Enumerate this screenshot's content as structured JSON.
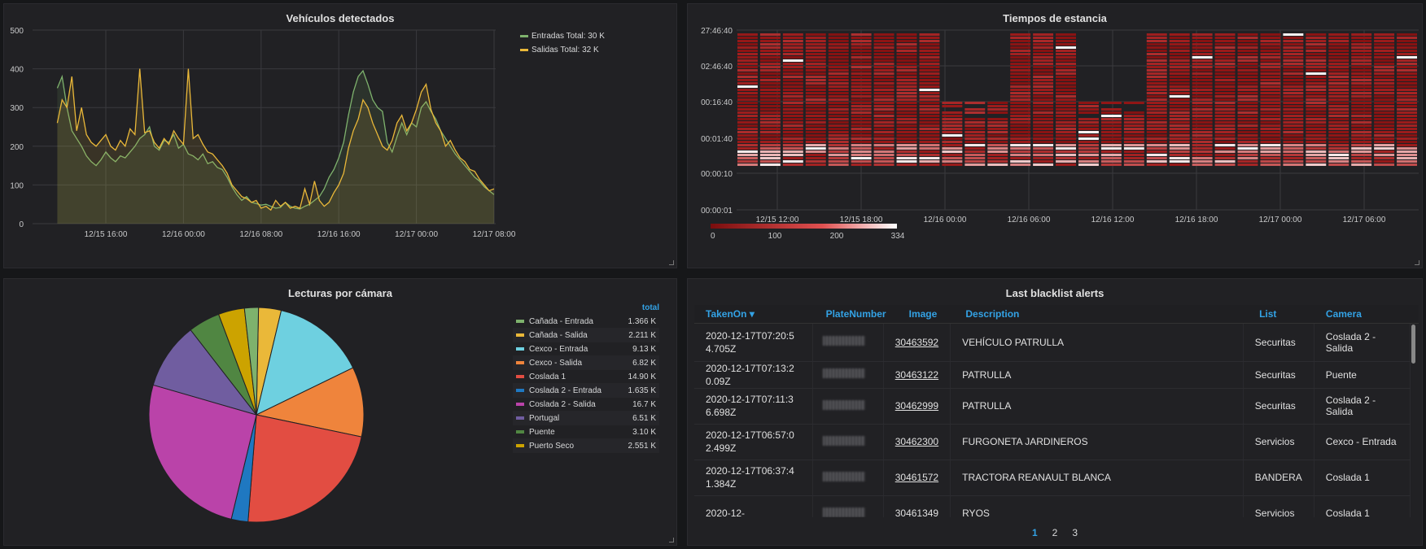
{
  "vehiculos": {
    "title": "Vehículos detectados",
    "legend": [
      {
        "name": "Entradas",
        "total": "Total: 30 K",
        "color": "#7eb26d"
      },
      {
        "name": "Salidas",
        "total": "Total: 32 K",
        "color": "#eab839"
      }
    ],
    "chart_data": {
      "type": "line",
      "title": "Vehículos detectados",
      "ylim": [
        0,
        500
      ],
      "yticks": [
        "0",
        "100",
        "200",
        "300",
        "400",
        "500"
      ],
      "xticks": [
        "12/15 16:00",
        "12/16 00:00",
        "12/16 08:00",
        "12/16 16:00",
        "12/17 00:00",
        "12/17 08:00"
      ],
      "x_start_hours": 11,
      "x_step_hours": 0.5,
      "series": [
        {
          "name": "Entradas",
          "color": "#7eb26d",
          "values": [
            350,
            380,
            300,
            240,
            220,
            200,
            175,
            160,
            150,
            165,
            185,
            170,
            160,
            175,
            170,
            185,
            200,
            220,
            230,
            250,
            200,
            190,
            215,
            210,
            230,
            195,
            205,
            180,
            175,
            165,
            180,
            155,
            160,
            145,
            140,
            120,
            95,
            75,
            60,
            70,
            55,
            52,
            48,
            50,
            45,
            40,
            42,
            55,
            45,
            40,
            38,
            45,
            50,
            60,
            70,
            90,
            120,
            140,
            170,
            210,
            280,
            340,
            380,
            395,
            360,
            320,
            300,
            290,
            210,
            185,
            225,
            260,
            230,
            260,
            250,
            300,
            315,
            290,
            270,
            240,
            220,
            200,
            180,
            165,
            150,
            135,
            120,
            110,
            95,
            85,
            75,
            65,
            55,
            45,
            40,
            35,
            35,
            40,
            45,
            55,
            60,
            50,
            45,
            40,
            35,
            45,
            60,
            80,
            120,
            180,
            230,
            270,
            330,
            370,
            330,
            250,
            200
          ]
        },
        {
          "name": "Salidas",
          "color": "#eab839",
          "values": [
            260,
            320,
            300,
            380,
            240,
            300,
            230,
            210,
            200,
            215,
            230,
            200,
            190,
            215,
            200,
            245,
            230,
            400,
            235,
            240,
            210,
            195,
            220,
            205,
            240,
            220,
            205,
            400,
            220,
            230,
            205,
            185,
            180,
            165,
            150,
            130,
            100,
            85,
            70,
            65,
            55,
            60,
            40,
            45,
            35,
            60,
            45,
            55,
            40,
            45,
            40,
            90,
            50,
            110,
            60,
            45,
            55,
            80,
            100,
            130,
            195,
            240,
            270,
            320,
            300,
            260,
            230,
            200,
            190,
            215,
            260,
            280,
            240,
            260,
            295,
            340,
            360,
            295,
            260,
            240,
            200,
            215,
            190,
            170,
            160,
            140,
            135,
            115,
            100,
            85,
            90,
            85,
            70,
            60,
            45,
            55,
            65,
            55,
            160,
            45,
            50,
            40,
            35,
            60,
            55,
            95,
            50,
            75,
            100,
            150,
            190,
            260,
            300,
            200
          ]
        }
      ]
    }
  },
  "estancia": {
    "title": "Tiempos de estancia",
    "chart_data": {
      "type": "heatmap",
      "title": "Tiempos de estancia",
      "yticks": [
        "00:00:01",
        "00:00:10",
        "00:01:40",
        "00:16:40",
        "02:46:40",
        "27:46:40"
      ],
      "xticks": [
        "12/15 12:00",
        "12/15 18:00",
        "12/16 00:00",
        "12/16 06:00",
        "12/16 12:00",
        "12/16 18:00",
        "12/17 00:00",
        "12/17 06:00"
      ],
      "color_scale": {
        "min": 0,
        "max": 334,
        "ticks": [
          "0",
          "100",
          "200",
          "334"
        ],
        "low": "#7a0d0d",
        "high": "#ffffff"
      }
    }
  },
  "lecturas": {
    "title": "Lecturas por cámara",
    "legend_header": "total",
    "chart_data": {
      "type": "pie",
      "title": "Lecturas por cámara",
      "slices": [
        {
          "name": "Cañada - Entrada",
          "display": "1.366 K",
          "value": 1366,
          "color": "#7eb26d"
        },
        {
          "name": "Cañada - Salida",
          "display": "2.211 K",
          "value": 2211,
          "color": "#eab839"
        },
        {
          "name": "Cexco - Entrada",
          "display": "9.13 K",
          "value": 9130,
          "color": "#6ed0e0"
        },
        {
          "name": "Cexco - Salida",
          "display": "6.82 K",
          "value": 6820,
          "color": "#ef843c"
        },
        {
          "name": "Coslada 1",
          "display": "14.90 K",
          "value": 14900,
          "color": "#e24d42"
        },
        {
          "name": "Coslada 2 - Entrada",
          "display": "1.635 K",
          "value": 1635,
          "color": "#1f78c1"
        },
        {
          "name": "Coslada 2 - Salida",
          "display": "16.7 K",
          "value": 16700,
          "color": "#ba43a9"
        },
        {
          "name": "Portugal",
          "display": "6.51 K",
          "value": 6510,
          "color": "#705da0"
        },
        {
          "name": "Puente",
          "display": "3.10 K",
          "value": 3100,
          "color": "#508642"
        },
        {
          "name": "Puerto Seco",
          "display": "2.551 K",
          "value": 2551,
          "color": "#cca300"
        }
      ]
    }
  },
  "blacklist": {
    "title": "Last blacklist alerts",
    "columns": {
      "taken_on": "TakenOn",
      "plate": "PlateNumber",
      "image": "Image",
      "description": "Description",
      "list": "List",
      "camera": "Camera"
    },
    "sort_indicator": "▾",
    "rows": [
      {
        "taken_on": "2020-12-17T07:20:54.705Z",
        "image": "30463592",
        "description": "VEHÍCULO PATRULLA",
        "list": "Securitas",
        "camera": "Coslada 2 - Salida",
        "linked": true
      },
      {
        "taken_on": "2020-12-17T07:13:20.09Z",
        "image": "30463122",
        "description": "PATRULLA",
        "list": "Securitas",
        "camera": "Puente",
        "linked": true
      },
      {
        "taken_on": "2020-12-17T07:11:36.698Z",
        "image": "30462999",
        "description": "PATRULLA",
        "list": "Securitas",
        "camera": "Coslada 2 - Salida",
        "linked": true
      },
      {
        "taken_on": "2020-12-17T06:57:02.499Z",
        "image": "30462300",
        "description": "FURGONETA JARDINEROS",
        "list": "Servicios",
        "camera": "Cexco - Entrada",
        "linked": true
      },
      {
        "taken_on": "2020-12-17T06:37:41.384Z",
        "image": "30461572",
        "description": "TRACTORA REANAULT BLANCA",
        "list": "BANDERA",
        "camera": "Coslada 1",
        "linked": true
      },
      {
        "taken_on": "2020-12-",
        "image": "30461349",
        "description": "RYOS",
        "list": "Servicios",
        "camera": "Coslada 1",
        "linked": false
      }
    ],
    "pages": [
      "1",
      "2",
      "3"
    ],
    "active_page": "1"
  }
}
